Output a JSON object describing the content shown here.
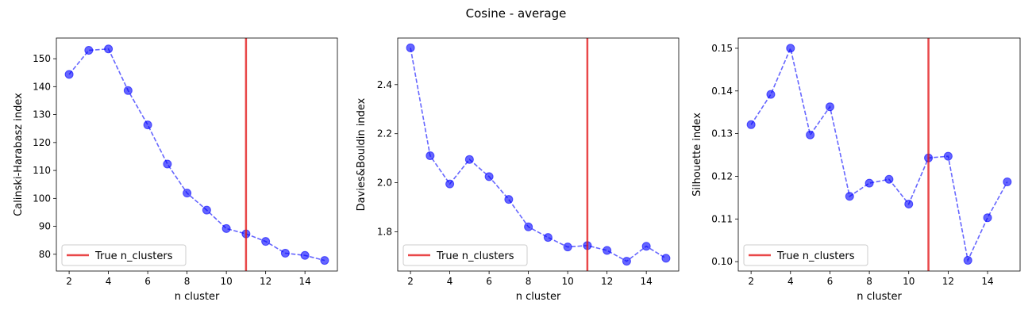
{
  "figure": {
    "title": "Cosine - average"
  },
  "colors": {
    "marker": "#0000ff",
    "line": "#0000ff",
    "vline": "#e41a1c"
  },
  "chart_data": [
    {
      "type": "line",
      "xlabel": "n cluster",
      "ylabel": "Calinski-Harabasz index",
      "x": [
        2,
        3,
        4,
        5,
        6,
        7,
        8,
        9,
        10,
        11,
        12,
        13,
        14,
        15
      ],
      "series": [
        {
          "values": [
            144.4,
            153.0,
            153.5,
            138.6,
            126.3,
            112.3,
            101.9,
            95.8,
            89.2,
            87.3,
            84.6,
            80.4,
            79.6,
            77.8
          ]
        }
      ],
      "vline": {
        "x": 11,
        "label": "True n_clusters"
      },
      "xlim": [
        1.35,
        15.65
      ],
      "ylim": [
        74.0,
        157.4
      ],
      "xticks": [
        2,
        4,
        6,
        8,
        10,
        12,
        14
      ],
      "yticks": [
        80,
        90,
        100,
        110,
        120,
        130,
        140,
        150
      ],
      "ytick_decimals": 0,
      "legend": "lower-left",
      "grid": false
    },
    {
      "type": "line",
      "xlabel": "n cluster",
      "ylabel": "Davies&Bouldin index",
      "x": [
        2,
        3,
        4,
        5,
        6,
        7,
        8,
        9,
        10,
        11,
        12,
        13,
        14,
        15
      ],
      "series": [
        {
          "values": [
            2.55,
            2.11,
            1.995,
            2.095,
            2.025,
            1.932,
            1.82,
            1.777,
            1.738,
            1.744,
            1.724,
            1.68,
            1.741,
            1.692
          ]
        }
      ],
      "vline": {
        "x": 11,
        "label": "True n_clusters"
      },
      "xlim": [
        1.35,
        15.65
      ],
      "ylim": [
        1.64,
        2.59
      ],
      "xticks": [
        2,
        4,
        6,
        8,
        10,
        12,
        14
      ],
      "yticks": [
        1.8,
        2.0,
        2.2,
        2.4
      ],
      "ytick_decimals": 1,
      "legend": "lower-left",
      "grid": false
    },
    {
      "type": "line",
      "xlabel": "n cluster",
      "ylabel": "Silhouette index",
      "x": [
        2,
        3,
        4,
        5,
        6,
        7,
        8,
        9,
        10,
        11,
        12,
        13,
        14,
        15
      ],
      "series": [
        {
          "values": [
            0.1321,
            0.1392,
            0.15,
            0.1297,
            0.1363,
            0.1153,
            0.1184,
            0.1193,
            0.1135,
            0.1243,
            0.1247,
            0.1003,
            0.1103,
            0.1187
          ]
        }
      ],
      "vline": {
        "x": 11,
        "label": "True n_clusters"
      },
      "xlim": [
        1.35,
        15.65
      ],
      "ylim": [
        0.0978,
        0.1524
      ],
      "xticks": [
        2,
        4,
        6,
        8,
        10,
        12,
        14
      ],
      "yticks": [
        0.1,
        0.11,
        0.12,
        0.13,
        0.14,
        0.15
      ],
      "ytick_decimals": 2,
      "legend": "lower-left",
      "grid": false
    }
  ]
}
